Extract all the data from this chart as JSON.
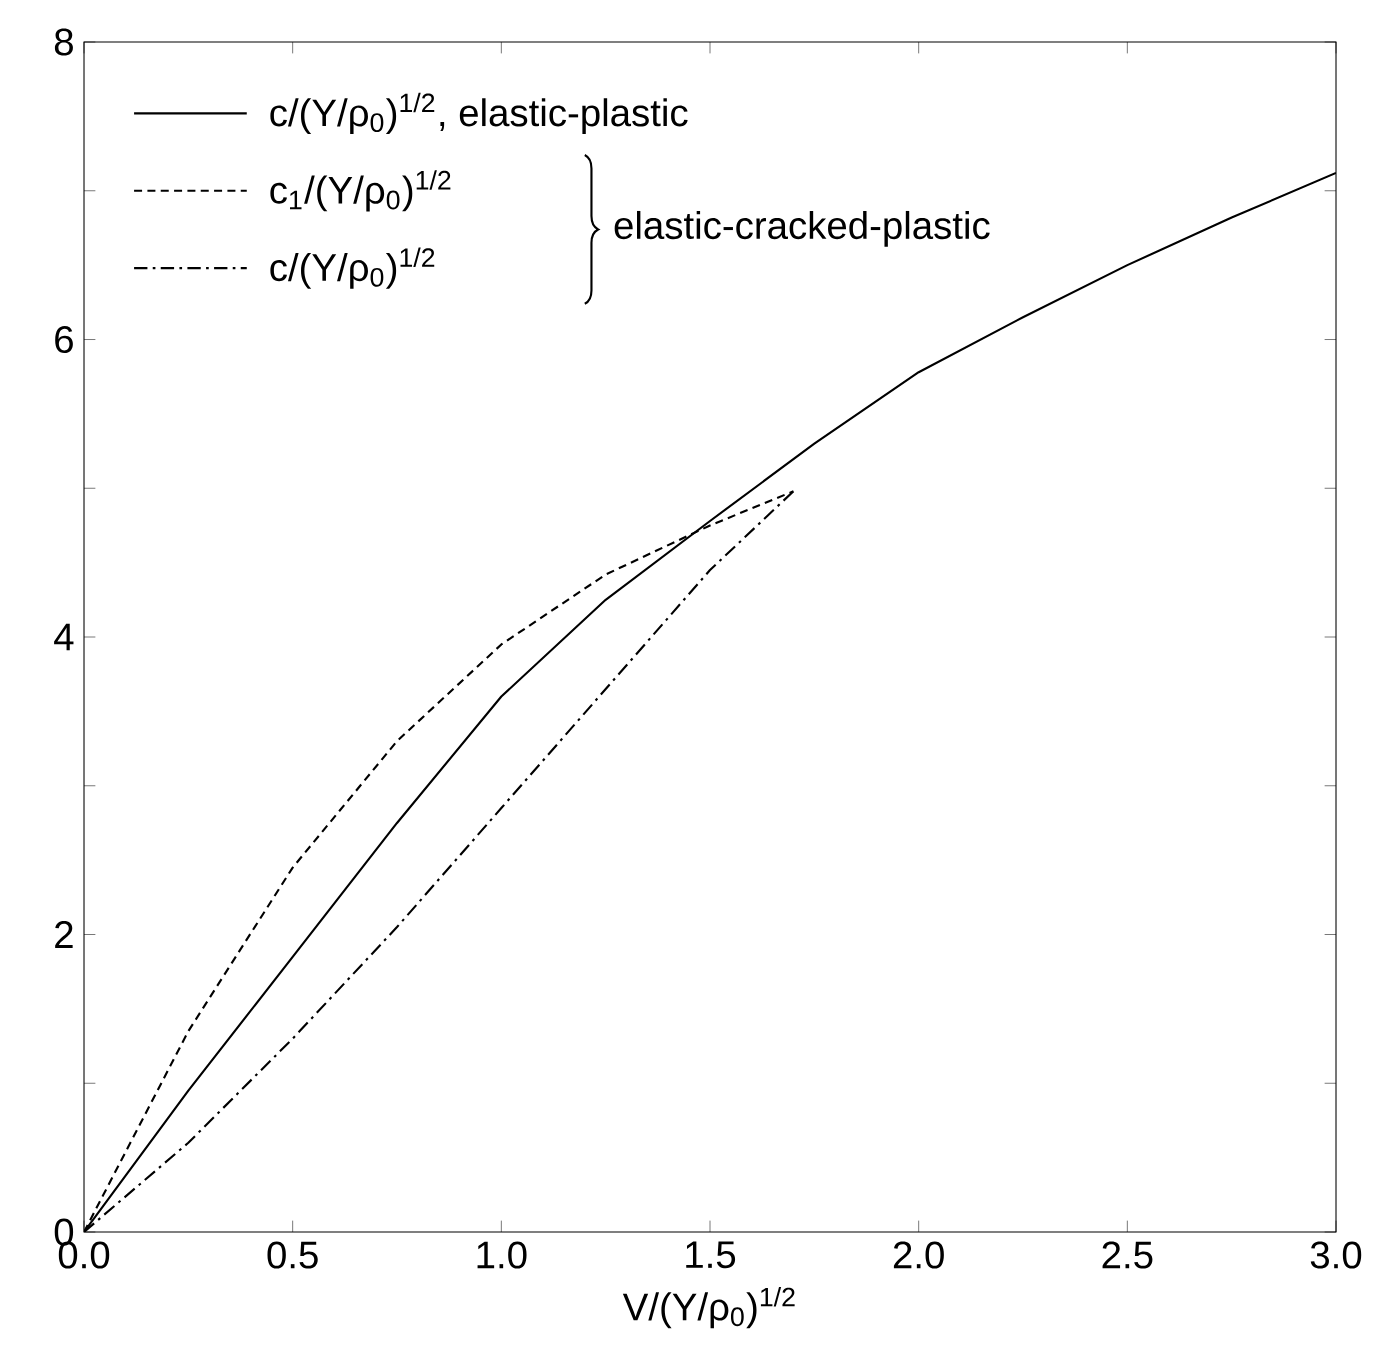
{
  "chart_data": {
    "type": "line",
    "xlabel": "V/(Y/ρ$_{0}$)$^{1/2}$",
    "xlim": [
      0,
      3
    ],
    "ylim": [
      0,
      8
    ],
    "xticks": [
      {
        "value": 0,
        "label": "0.0"
      },
      {
        "value": 0.5,
        "label": "0.5"
      },
      {
        "value": 1,
        "label": "1.0"
      },
      {
        "value": 1.5,
        "label": "1.5"
      },
      {
        "value": 2,
        "label": "2.0"
      },
      {
        "value": 2.5,
        "label": "2.5"
      },
      {
        "value": 3,
        "label": "3.0"
      }
    ],
    "yticks": [
      0,
      {
        "value": 1,
        "label": null
      },
      2,
      {
        "value": 3,
        "label": null
      },
      4,
      {
        "value": 5,
        "label": null
      },
      6,
      {
        "value": 7,
        "label": null
      },
      8
    ],
    "legend": "top left",
    "marker": "none",
    "annotations": [
      "elastic-cracked-plastic"
    ],
    "series": [
      {
        "name": "c/(Y/ρ$_{0}$)$^{1/2}$, elastic-plastic",
        "color": "#000000",
        "line_style": "solid",
        "x": [
          0,
          0.25,
          0.5,
          0.75,
          1,
          1.25,
          1.5,
          1.75,
          2,
          2.25,
          2.5,
          2.75,
          3
        ],
        "values": [
          0,
          0.95,
          1.85,
          2.75,
          3.6,
          4.25,
          4.78,
          5.3,
          5.78,
          6.15,
          6.5,
          6.82,
          7.12
        ]
      },
      {
        "name": "c$_{1}$/(Y/ρ$_{0}$)$^{1/2}$",
        "color": "#000000",
        "line_style": "dashed",
        "x": [
          0,
          0.25,
          0.5,
          0.75,
          1,
          1.25,
          1.5,
          1.7
        ],
        "values": [
          0,
          1.35,
          2.45,
          3.3,
          3.95,
          4.42,
          4.75,
          4.98
        ]
      },
      {
        "name": "c/(Y/ρ$_{0}$)$^{1/2}$",
        "color": "#000000",
        "line_style": "dashdot",
        "x": [
          0,
          0.25,
          0.5,
          0.75,
          1,
          1.25,
          1.5,
          1.7
        ],
        "values": [
          0,
          0.6,
          1.3,
          2.05,
          2.85,
          3.65,
          4.45,
          4.98
        ]
      }
    ]
  }
}
